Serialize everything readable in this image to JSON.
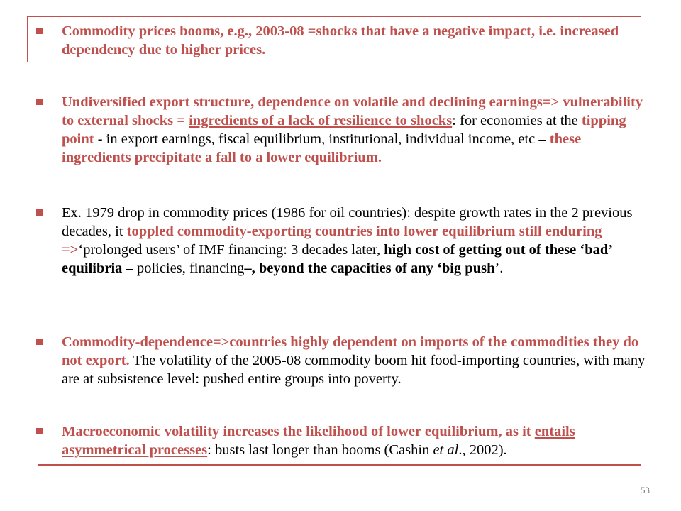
{
  "bullets": [
    {
      "segments": [
        {
          "text": "Commodity prices booms, e.g., 2003-08 =shocks that have a negative impact, i.e. increased dependency due to higher prices.",
          "style": "o"
        }
      ]
    },
    {
      "segments": [
        {
          "text": "Undiversified export structure, dependence on volatile and declining earnings=> vulnerability to external shocks = ",
          "style": "o"
        },
        {
          "text": "ingredients of a lack of resilience to shocks",
          "style": "o u"
        },
        {
          "text": ": for economies at the ",
          "style": ""
        },
        {
          "text": "tipping point",
          "style": "o"
        },
        {
          "text": " - in export earnings, fiscal equilibrium, institutional, individual income, etc – ",
          "style": ""
        },
        {
          "text": "these ingredients precipitate a fall to a lower equilibrium.",
          "style": "o"
        }
      ]
    },
    {
      "segments": [
        {
          "text": "Ex. 1979 drop in commodity prices (1986 for oil countries): despite growth rates in the 2 previous decades, it ",
          "style": ""
        },
        {
          "text": "toppled commodity-exporting countries into lower equilibrium still enduring =>",
          "style": "o"
        },
        {
          "text": "‘prolonged users’ of IMF financing: 3 decades later, ",
          "style": ""
        },
        {
          "text": "high cost of getting out of these ‘bad’ equilibria",
          "style": "k"
        },
        {
          "text": " – policies, financing",
          "style": ""
        },
        {
          "text": "–, beyond the capacities of any ‘big push",
          "style": "k"
        },
        {
          "text": "’.",
          "style": ""
        }
      ]
    },
    {
      "segments": [
        {
          "text": "Commodity-dependence=>countries highly dependent on imports of the commodities they do not export.",
          "style": "o"
        },
        {
          "text": " The volatility of the 2005-08 commodity boom hit food-importing countries, with many are at subsistence level: pushed entire groups into poverty.",
          "style": ""
        }
      ]
    },
    {
      "segments": [
        {
          "text": "Macroeconomic volatility increases the likelihood of lower equilibrium, as it ",
          "style": "o"
        },
        {
          "text": "entails asymmetrical processes",
          "style": "o u"
        },
        {
          "text": ": busts last longer than booms (Cashin ",
          "style": ""
        },
        {
          "text": "et al",
          "style": "i"
        },
        {
          "text": "., 2002).",
          "style": ""
        }
      ]
    }
  ],
  "slide_number": "53",
  "colors": {
    "accent": "#c0504d",
    "text": "#000000"
  }
}
